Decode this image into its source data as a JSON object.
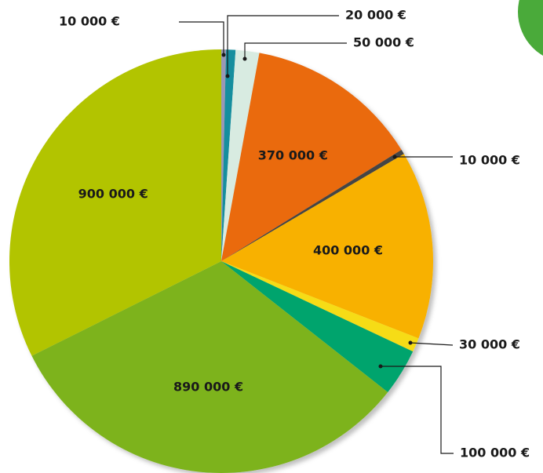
{
  "chart_data": {
    "type": "pie",
    "categories": [
      null,
      null,
      null,
      null,
      null,
      null,
      null,
      null,
      null,
      null
    ],
    "values": [
      10000,
      20000,
      50000,
      370000,
      10000,
      400000,
      30000,
      100000,
      890000,
      900000
    ],
    "value_labels": [
      "10 000 €",
      "20 000 €",
      "50 000 €",
      "370 000 €",
      "10 000 €",
      "400 000 €",
      "30 000 €",
      "100 000 €",
      "890 000 €",
      "900 000 €"
    ],
    "colors": [
      "#9a98b4",
      "#138e9e",
      "#d8ebe1",
      "#ea6a0e",
      "#454545",
      "#f8b102",
      "#f6dc16",
      "#00a46d",
      "#7db31f",
      "#b2c402"
    ]
  }
}
